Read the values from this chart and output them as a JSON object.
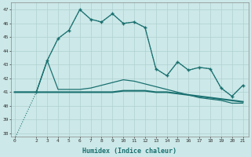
{
  "background_color": "#cce8e8",
  "grid_color": "#b0d0d0",
  "line_color": "#1a7070",
  "x_label": "Humidex (Indice chaleur)",
  "ylim": [
    37.8,
    47.5
  ],
  "xlim": [
    -0.3,
    21.5
  ],
  "yticks": [
    38,
    39,
    40,
    41,
    42,
    43,
    44,
    45,
    46,
    47
  ],
  "xticks": [
    0,
    2,
    3,
    4,
    5,
    6,
    7,
    8,
    9,
    10,
    11,
    12,
    13,
    14,
    15,
    16,
    17,
    18,
    19,
    20,
    21
  ],
  "series": {
    "line_dotted_x": [
      0,
      2,
      3,
      4,
      5,
      6,
      7,
      8,
      9,
      10,
      11,
      12,
      13,
      14,
      15,
      16,
      17,
      18,
      19,
      20,
      21
    ],
    "line_dotted_y": [
      37.6,
      41.0,
      43.3,
      44.9,
      45.5,
      47.0,
      46.3,
      46.1,
      46.7,
      46.0,
      46.1,
      45.7,
      42.7,
      42.2,
      43.2,
      42.6,
      42.8,
      42.7,
      41.3,
      40.7,
      41.5
    ],
    "line_marked_x": [
      2,
      3,
      4,
      5,
      6,
      7,
      8,
      9,
      10,
      11,
      12,
      13,
      14,
      15,
      16,
      17,
      18,
      19,
      20,
      21
    ],
    "line_marked_y": [
      41.0,
      43.3,
      44.9,
      45.5,
      47.0,
      46.3,
      46.1,
      46.7,
      46.0,
      46.1,
      45.7,
      42.7,
      42.2,
      43.2,
      42.6,
      42.8,
      42.7,
      41.3,
      40.7,
      41.5
    ],
    "line_flat1_x": [
      0,
      2,
      3,
      4,
      5,
      6,
      7,
      8,
      9,
      10,
      11,
      12,
      13,
      14,
      15,
      16,
      17,
      18,
      19,
      20,
      21
    ],
    "line_flat1_y": [
      41.0,
      41.0,
      43.3,
      41.2,
      41.2,
      41.2,
      41.3,
      41.5,
      41.7,
      41.9,
      41.8,
      41.6,
      41.4,
      41.2,
      41.0,
      40.8,
      40.6,
      40.5,
      40.4,
      40.2,
      40.2
    ],
    "line_flat2_x": [
      0,
      2,
      3,
      4,
      5,
      6,
      7,
      8,
      9,
      10,
      11,
      12,
      13,
      14,
      15,
      16,
      17,
      18,
      19,
      20,
      21
    ],
    "line_flat2_y": [
      41.0,
      41.0,
      41.0,
      41.0,
      41.0,
      41.0,
      41.0,
      41.0,
      41.0,
      41.1,
      41.1,
      41.1,
      41.0,
      41.0,
      40.9,
      40.8,
      40.7,
      40.6,
      40.5,
      40.4,
      40.3
    ]
  }
}
